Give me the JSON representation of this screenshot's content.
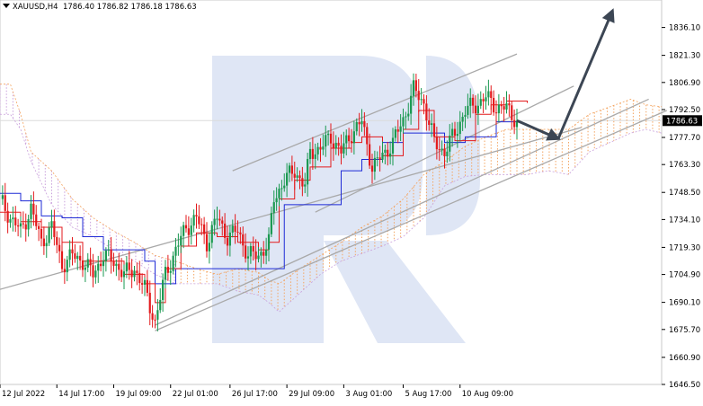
{
  "header": {
    "symbol": "XAUUSD,H4",
    "ohlc": "1786.40 1786.82 1786.18 1786.63"
  },
  "price_label": "1786.63",
  "colors": {
    "bull": "#1a9850",
    "bear": "#e31a1c",
    "kijun": "#1f2bd6",
    "tenkan": "#e31a1c",
    "cloud_bull": "#f4a460",
    "cloud_bear": "#c9a0dc",
    "channel": "#a9a9a9",
    "arrow": "#3c4654",
    "watermark": "#dfe6f5"
  },
  "chart_data": {
    "type": "candlestick",
    "symbol": "XAUUSD",
    "timeframe": "H4",
    "ylim": [
      1646.5,
      1850.7
    ],
    "y_ticks": [
      1836.1,
      1821.3,
      1806.9,
      1792.5,
      1777.7,
      1763.3,
      1748.5,
      1734.1,
      1719.3,
      1704.9,
      1690.1,
      1675.7,
      1660.9,
      1646.5
    ],
    "x_ticks": [
      "12 Jul 2022",
      "14 Jul 17:00",
      "19 Jul 09:00",
      "22 Jul 01:00",
      "26 Jul 17:00",
      "29 Jul 09:00",
      "3 Aug 01:00",
      "5 Aug 17:00",
      "10 Aug 09:00"
    ],
    "last_price": 1786.63,
    "close_path": [
      [
        0,
        1745
      ],
      [
        4,
        1735
      ],
      [
        8,
        1728
      ],
      [
        12,
        1740
      ],
      [
        16,
        1722
      ],
      [
        20,
        1730
      ],
      [
        24,
        1710
      ],
      [
        28,
        1715
      ],
      [
        32,
        1712
      ],
      [
        36,
        1705
      ],
      [
        40,
        1715
      ],
      [
        44,
        1712
      ],
      [
        48,
        1705
      ],
      [
        52,
        1708
      ],
      [
        56,
        1697
      ],
      [
        58,
        1688
      ],
      [
        60,
        1680
      ],
      [
        64,
        1705
      ],
      [
        68,
        1718
      ],
      [
        72,
        1730
      ],
      [
        76,
        1735
      ],
      [
        80,
        1722
      ],
      [
        84,
        1735
      ],
      [
        88,
        1725
      ],
      [
        92,
        1728
      ],
      [
        96,
        1715
      ],
      [
        100,
        1715
      ],
      [
        104,
        1722
      ],
      [
        106,
        1745
      ],
      [
        110,
        1755
      ],
      [
        114,
        1760
      ],
      [
        118,
        1752
      ],
      [
        120,
        1770
      ],
      [
        124,
        1772
      ],
      [
        128,
        1778
      ],
      [
        132,
        1770
      ],
      [
        136,
        1780
      ],
      [
        140,
        1786
      ],
      [
        144,
        1762
      ],
      [
        148,
        1768
      ],
      [
        152,
        1775
      ],
      [
        156,
        1787
      ],
      [
        160,
        1803
      ],
      [
        164,
        1796
      ],
      [
        168,
        1775
      ],
      [
        172,
        1770
      ],
      [
        176,
        1780
      ],
      [
        180,
        1792
      ],
      [
        184,
        1795
      ],
      [
        188,
        1799
      ],
      [
        192,
        1794
      ],
      [
        196,
        1793
      ],
      [
        200,
        1786.63
      ]
    ],
    "kijun": [
      [
        0,
        1748
      ],
      [
        8,
        1744
      ],
      [
        16,
        1736
      ],
      [
        24,
        1735
      ],
      [
        32,
        1725
      ],
      [
        40,
        1718
      ],
      [
        48,
        1718
      ],
      [
        56,
        1712
      ],
      [
        60,
        1700
      ],
      [
        68,
        1708
      ],
      [
        76,
        1708
      ],
      [
        84,
        1708
      ],
      [
        96,
        1708
      ],
      [
        104,
        1708
      ],
      [
        110,
        1742
      ],
      [
        120,
        1742
      ],
      [
        132,
        1760
      ],
      [
        140,
        1766
      ],
      [
        148,
        1775
      ],
      [
        156,
        1780
      ],
      [
        164,
        1780
      ],
      [
        172,
        1775
      ],
      [
        180,
        1778
      ],
      [
        186,
        1778
      ],
      [
        192,
        1786
      ],
      [
        200,
        1786
      ]
    ],
    "tenkan": [
      [
        0,
        1738
      ],
      [
        8,
        1733
      ],
      [
        16,
        1730
      ],
      [
        24,
        1722
      ],
      [
        32,
        1712
      ],
      [
        40,
        1712
      ],
      [
        48,
        1705
      ],
      [
        56,
        1700
      ],
      [
        60,
        1690
      ],
      [
        64,
        1708
      ],
      [
        70,
        1720
      ],
      [
        76,
        1727
      ],
      [
        84,
        1725
      ],
      [
        92,
        1722
      ],
      [
        100,
        1718
      ],
      [
        104,
        1722
      ],
      [
        108,
        1745
      ],
      [
        114,
        1755
      ],
      [
        120,
        1762
      ],
      [
        128,
        1772
      ],
      [
        136,
        1775
      ],
      [
        140,
        1778
      ],
      [
        148,
        1768
      ],
      [
        156,
        1782
      ],
      [
        162,
        1792
      ],
      [
        168,
        1778
      ],
      [
        176,
        1776
      ],
      [
        184,
        1790
      ],
      [
        190,
        1795
      ],
      [
        196,
        1797
      ],
      [
        204,
        1796
      ]
    ],
    "cloud": [
      [
        0,
        1806,
        1790
      ],
      [
        4,
        1806,
        1790
      ],
      [
        8,
        1790,
        1782
      ],
      [
        12,
        1770,
        1765
      ],
      [
        20,
        1760,
        1742
      ],
      [
        28,
        1745,
        1730
      ],
      [
        36,
        1735,
        1725
      ],
      [
        44,
        1728,
        1718
      ],
      [
        52,
        1722,
        1712
      ],
      [
        60,
        1715,
        1705
      ],
      [
        68,
        1712,
        1700
      ],
      [
        76,
        1708,
        1700
      ],
      [
        84,
        1705,
        1700
      ],
      [
        92,
        1708,
        1696
      ],
      [
        100,
        1706,
        1694
      ],
      [
        104,
        1702,
        1690
      ],
      [
        108,
        1700,
        1685
      ],
      [
        116,
        1708,
        1695
      ],
      [
        124,
        1715,
        1705
      ],
      [
        132,
        1722,
        1712
      ],
      [
        140,
        1730,
        1716
      ],
      [
        148,
        1736,
        1720
      ],
      [
        156,
        1745,
        1725
      ],
      [
        164,
        1758,
        1735
      ],
      [
        172,
        1765,
        1752
      ],
      [
        180,
        1773,
        1757
      ],
      [
        188,
        1778,
        1758
      ],
      [
        196,
        1782,
        1758
      ],
      [
        204,
        1782,
        1758
      ],
      [
        212,
        1782,
        1760
      ],
      [
        220,
        1782,
        1758
      ],
      [
        228,
        1790,
        1770
      ],
      [
        236,
        1794,
        1775
      ],
      [
        244,
        1798,
        1780
      ],
      [
        250,
        1795,
        1782
      ],
      [
        256,
        1794,
        1780
      ]
    ],
    "channel_lines": [
      [
        [
          0,
          1697
        ],
        [
          225,
          1783
        ]
      ],
      [
        [
          60,
          1675
        ],
        [
          258,
          1792
        ]
      ],
      [
        [
          90,
          1760
        ],
        [
          200,
          1822
        ]
      ],
      [
        [
          122,
          1738
        ],
        [
          222,
          1805
        ]
      ],
      [
        [
          60,
          1678
        ],
        [
          251,
          1798
        ]
      ]
    ],
    "forecast_arrows": [
      [
        [
          200,
          1786.63
        ],
        [
          216,
          1777
        ]
      ],
      [
        [
          216,
          1777
        ],
        [
          237,
          1845
        ]
      ]
    ]
  }
}
